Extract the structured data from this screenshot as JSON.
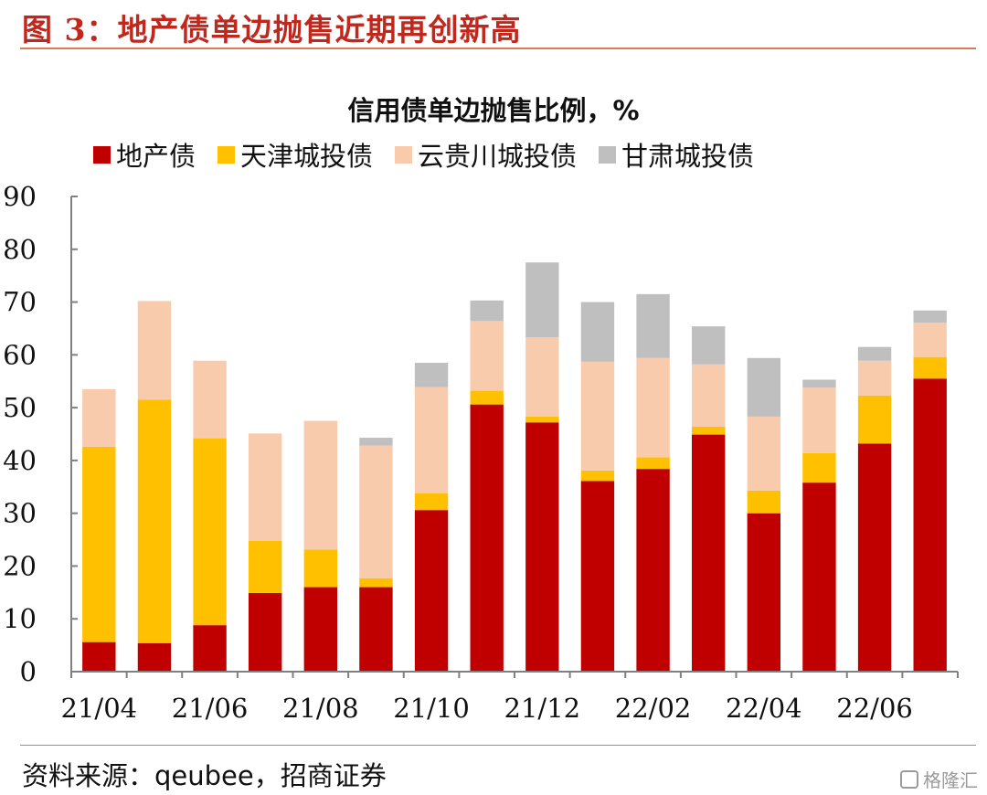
{
  "header": {
    "title": "图 3：地产债单边抛售近期再创新高"
  },
  "footer": {
    "source": "资料来源：qeubee，招商证券",
    "watermark": "格隆汇"
  },
  "chart_data": {
    "type": "bar",
    "stacked": true,
    "title": "信用债单边抛售比例，%",
    "categories": [
      "21/04",
      "21/05",
      "21/06",
      "21/07",
      "21/08",
      "21/09",
      "21/10",
      "21/11",
      "21/12",
      "22/01",
      "22/02",
      "22/03",
      "22/04",
      "22/05",
      "22/06",
      "22/07"
    ],
    "x_tick_labels": [
      "21/04",
      "21/06",
      "21/08",
      "21/10",
      "21/12",
      "22/02",
      "22/04",
      "22/06"
    ],
    "ylim": [
      0,
      90
    ],
    "y_ticks": [
      0,
      10,
      20,
      30,
      40,
      50,
      60,
      70,
      80,
      90
    ],
    "grid": false,
    "legend_position": "top",
    "series": [
      {
        "name": "地产债",
        "color": "#c00000",
        "values": [
          5.6,
          5.4,
          8.8,
          14.9,
          16.0,
          16.0,
          30.6,
          50.6,
          47.2,
          36.1,
          38.4,
          44.9,
          30.0,
          35.8,
          43.2,
          55.5
        ]
      },
      {
        "name": "天津城投债",
        "color": "#ffc000",
        "values": [
          37.0,
          46.1,
          35.4,
          9.9,
          7.1,
          1.7,
          3.2,
          2.6,
          1.1,
          2.0,
          2.2,
          1.5,
          4.3,
          5.6,
          9.1,
          4.1
        ]
      },
      {
        "name": "云贵川城投债",
        "color": "#f8cbad",
        "values": [
          10.9,
          18.7,
          14.7,
          20.3,
          24.4,
          25.1,
          20.1,
          13.2,
          15.0,
          20.6,
          18.8,
          11.8,
          14.0,
          12.4,
          6.6,
          6.5
        ]
      },
      {
        "name": "甘肃城投债",
        "color": "#bfbfbf",
        "values": [
          0,
          0,
          0,
          0,
          0,
          1.5,
          4.6,
          3.9,
          14.2,
          11.3,
          12.1,
          7.2,
          11.1,
          1.5,
          2.6,
          2.3
        ]
      }
    ]
  }
}
